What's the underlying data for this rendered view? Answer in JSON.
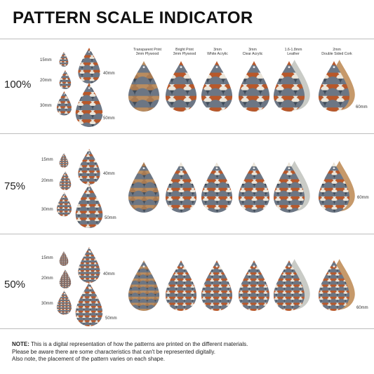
{
  "title": "PATTERN SCALE INDICATOR",
  "columns": [
    {
      "line1": "Transparent Print",
      "line2": "3mm Plywood"
    },
    {
      "line1": "Bright Print",
      "line2": "3mm Plywood"
    },
    {
      "line1": "3mm",
      "line2": "White Acrylic"
    },
    {
      "line1": "3mm",
      "line2": "Clear Acrylic"
    },
    {
      "line1": "1.6-1.8mm",
      "line2": "Leather"
    },
    {
      "line1": "2mm",
      "line2": "Double Sided Cork"
    }
  ],
  "sections": [
    {
      "scale": "100%",
      "sizes": {
        "s15": "15mm",
        "s20": "20mm",
        "s30": "30mm",
        "s40": "40mm",
        "s50": "50mm",
        "s60": "60mm"
      }
    },
    {
      "scale": "75%",
      "sizes": {
        "s15": "15mm",
        "s20": "20mm",
        "s30": "30mm",
        "s40": "40mm",
        "s50": "50mm",
        "s60": "60mm"
      }
    },
    {
      "scale": "50%",
      "sizes": {
        "s15": "15mm",
        "s20": "20mm",
        "s30": "30mm",
        "s40": "40mm",
        "s50": "50mm",
        "s60": "60mm"
      }
    }
  ],
  "note": {
    "label": "NOTE:",
    "line1": " This is a digital representation of how the patterns are printed on the different materials.",
    "line2": "Please be aware there are some characteristics that can't be represented digitally.",
    "line3": "Also note, the placement of the pattern varies on each shape."
  },
  "colors": {
    "navy": "#3e4a58",
    "slate": "#6c7684",
    "rust": "#b8582a",
    "cream": "#ece6da",
    "tan": "#b98c5f",
    "wood": "#a87a52",
    "cork": "#c6996a",
    "leather": "#c9cbc6"
  }
}
